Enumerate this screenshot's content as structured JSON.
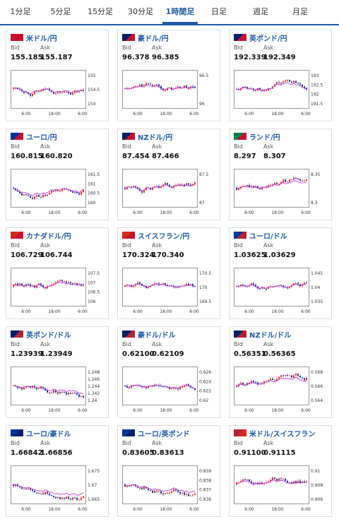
{
  "tabs": [
    "1分足",
    "5分足",
    "15分足",
    "30分足",
    "1時間足",
    "日足",
    "週足",
    "月足"
  ],
  "active_tab": 4,
  "cards": [
    {
      "name": "米ドル/円",
      "bid": "155.185",
      "ask": "155.187",
      "yticks": [
        "155",
        "154.5",
        "154"
      ],
      "xticks": [
        "6:00",
        "18:00",
        "6:00"
      ],
      "flag": [
        "#c8102e",
        "#c8102e"
      ]
    },
    {
      "name": "豪ドル/円",
      "bid": "96.378",
      "ask": "96.385",
      "yticks": [
        "96.5",
        "96"
      ],
      "xticks": [
        "6:00",
        "18:00",
        "6:00"
      ],
      "flag": [
        "#012169",
        "#c8102e"
      ]
    },
    {
      "name": "英ポンド/円",
      "bid": "192.339",
      "ask": "192.349",
      "yticks": [
        "193",
        "192.5",
        "192",
        "191.5"
      ],
      "xticks": [
        "6:00",
        "18:00",
        "6:00"
      ],
      "flag": [
        "#012169",
        "#c8102e"
      ]
    },
    {
      "name": "ユーロ/円",
      "bid": "160.815",
      "ask": "160.820",
      "yticks": [
        "161.5",
        "161",
        "160.5",
        "160"
      ],
      "xticks": [
        "6:00",
        "18:00",
        "6:00"
      ],
      "flag": [
        "#003399",
        "#c8102e"
      ]
    },
    {
      "name": "NZドル/円",
      "bid": "87.454",
      "ask": "87.466",
      "yticks": [
        "87.5",
        "87"
      ],
      "xticks": [
        "6:00",
        "18:00",
        "6:00"
      ],
      "flag": [
        "#012169",
        "#c8102e"
      ]
    },
    {
      "name": "ランド/円",
      "bid": "8.297",
      "ask": "8.307",
      "yticks": [
        "8.35",
        "8.3"
      ],
      "xticks": [
        "6:00",
        "18:00",
        "6:00"
      ],
      "flag": [
        "#007a4d",
        "#c8102e"
      ]
    },
    {
      "name": "カナダドル/円",
      "bid": "106.729",
      "ask": "106.744",
      "yticks": [
        "107.5",
        "107",
        "106.5",
        "106"
      ],
      "xticks": [
        "6:00",
        "18:00",
        "6:00"
      ],
      "flag": [
        "#d52b1e",
        "#c8102e"
      ]
    },
    {
      "name": "スイスフラン/円",
      "bid": "170.324",
      "ask": "170.340",
      "yticks": [
        "170.5",
        "170",
        "169.5"
      ],
      "xticks": [
        "6:00",
        "18:00",
        "6:00"
      ],
      "flag": [
        "#d52b1e",
        "#c8102e"
      ]
    },
    {
      "name": "ユーロ/ドル",
      "bid": "1.03625",
      "ask": "1.03629",
      "yticks": [
        "1.045",
        "1.04",
        "1.035"
      ],
      "xticks": [
        "6:00",
        "18:00",
        "6:00"
      ],
      "flag": [
        "#003399",
        "#b22234"
      ]
    },
    {
      "name": "英ポンド/ドル",
      "bid": "1.23939",
      "ask": "1.23949",
      "yticks": [
        "1.248",
        "1.246",
        "1.244",
        "1.242",
        "1.24"
      ],
      "xticks": [
        "6:00",
        "18:00",
        "6:00"
      ],
      "flag": [
        "#012169",
        "#b22234"
      ]
    },
    {
      "name": "豪ドル/ドル",
      "bid": "0.62100",
      "ask": "0.62109",
      "yticks": [
        "0.626",
        "0.624",
        "0.622",
        "0.62"
      ],
      "xticks": [
        "6:00",
        "18:00",
        "6:00"
      ],
      "flag": [
        "#012169",
        "#b22234"
      ]
    },
    {
      "name": "NZドル/ドル",
      "bid": "0.56351",
      "ask": "0.56365",
      "yticks": [
        "0.568",
        "0.566",
        "0.564"
      ],
      "xticks": [
        "6:00",
        "18:00",
        "6:00"
      ],
      "flag": [
        "#012169",
        "#b22234"
      ]
    },
    {
      "name": "ユーロ/豪ドル",
      "bid": "1.66842",
      "ask": "1.66856",
      "yticks": [
        "1.675",
        "1.67",
        "1.665"
      ],
      "xticks": [
        "6:00",
        "18:00",
        "6:00"
      ],
      "flag": [
        "#003399",
        "#012169"
      ]
    },
    {
      "name": "ユーロ/英ポンド",
      "bid": "0.83605",
      "ask": "0.83613",
      "yticks": [
        "0.839",
        "0.838",
        "0.837",
        "0.836"
      ],
      "xticks": [
        "6:00",
        "18:00",
        "6:00"
      ],
      "flag": [
        "#003399",
        "#012169"
      ]
    },
    {
      "name": "米ドル/スイスフラン",
      "bid": "0.91100",
      "ask": "0.91115",
      "yticks": [
        "0.91",
        "0.908",
        "0.906"
      ],
      "xticks": [
        "6:00",
        "18:00",
        "6:00"
      ],
      "flag": [
        "#b22234",
        "#d52b1e"
      ]
    }
  ],
  "labels": {
    "bid": "Bid",
    "ask": "Ask"
  }
}
